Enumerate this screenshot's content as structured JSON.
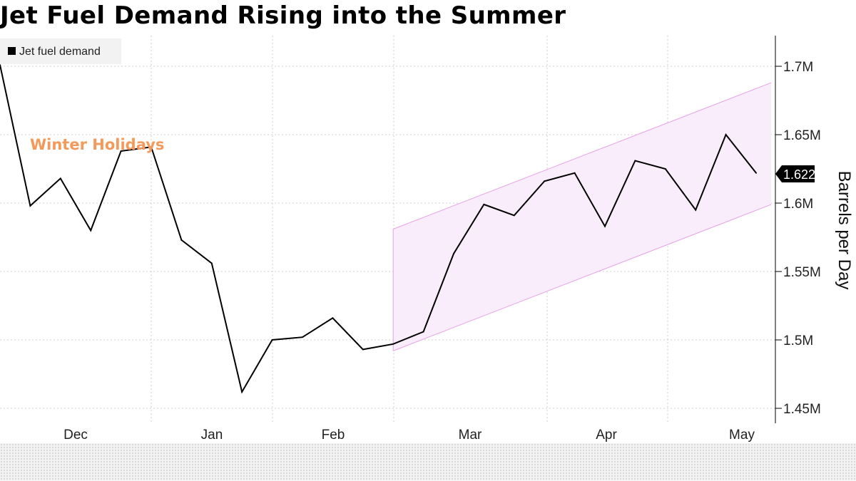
{
  "title": "Jet Fuel Demand Rising into the Summer",
  "legend": {
    "label": "Jet fuel demand"
  },
  "annotation": "Winter Holidays",
  "last_value_badge": "1.622M",
  "colors": {
    "line": "#000000",
    "channel_fill": "#f9ecfb",
    "channel_edge": "#e6a2e6",
    "annotation": "#f5995a",
    "badge_bg": "#000000",
    "badge_text": "#ffffff",
    "grid": "#cfcfcf"
  },
  "chart_data": {
    "type": "line",
    "title": "Jet Fuel Demand Rising into the Summer",
    "xlabel": "",
    "ylabel": "Barrels per Day",
    "ylim": [
      1.44,
      1.725
    ],
    "yticks": [
      1.45,
      1.5,
      1.55,
      1.6,
      1.65,
      1.7
    ],
    "ytick_labels": [
      "1.45M",
      "1.5M",
      "1.55M",
      "1.6M",
      "1.65M",
      "1.7M"
    ],
    "x_tick_labels": [
      "Dec",
      "Jan",
      "Feb",
      "Mar",
      "Apr",
      "May"
    ],
    "grid": true,
    "legend_position": "top-left",
    "series": [
      {
        "name": "Jet fuel demand",
        "values": [
          1.701,
          1.598,
          1.618,
          1.58,
          1.638,
          1.641,
          1.573,
          1.556,
          1.462,
          1.5,
          1.502,
          1.516,
          1.493,
          1.497,
          1.506,
          1.563,
          1.599,
          1.591,
          1.616,
          1.622,
          1.583,
          1.631,
          1.625,
          1.595,
          1.65,
          1.622
        ]
      }
    ],
    "trend_channel": {
      "start_index": 13,
      "end_index": 25.5,
      "upper": [
        1.581,
        1.688
      ],
      "lower": [
        1.492,
        1.599
      ]
    },
    "annotations": [
      {
        "text": "Winter Holidays",
        "near_index": 4
      }
    ],
    "last_value_label": "1.622M"
  }
}
